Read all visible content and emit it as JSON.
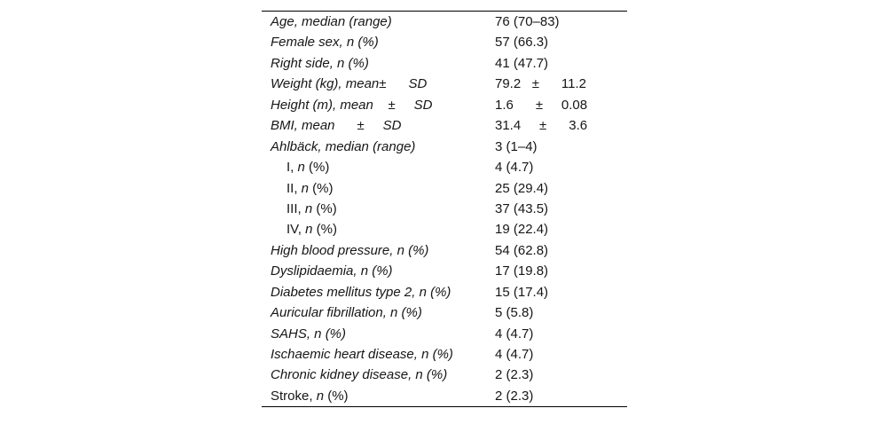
{
  "colors": {
    "background": "#ffffff",
    "text": "#161616",
    "rule": "#000000"
  },
  "table": {
    "rows": [
      {
        "indent": false,
        "label": [
          {
            "t": "Age, median (range)",
            "i": true
          }
        ],
        "value": "76 (70–83)"
      },
      {
        "indent": false,
        "label": [
          {
            "t": "Female sex, n (%)",
            "i": true
          }
        ],
        "value": "57 (66.3)"
      },
      {
        "indent": false,
        "label": [
          {
            "t": "Right side, n (%)",
            "i": true
          }
        ],
        "value": "41 (47.7)"
      },
      {
        "indent": false,
        "label": [
          {
            "t": "Weight (kg), mean±      SD",
            "i": true
          }
        ],
        "value": "79.2   ±      11.2"
      },
      {
        "indent": false,
        "label": [
          {
            "t": "Height (m), mean    ±     SD",
            "i": true
          }
        ],
        "value": "1.6      ±     0.08"
      },
      {
        "indent": false,
        "label": [
          {
            "t": "BMI, mean      ±     SD",
            "i": true
          }
        ],
        "value": "31.4     ±      3.6"
      },
      {
        "indent": false,
        "label": [
          {
            "t": "Ahlbäck, median (range)",
            "i": true
          }
        ],
        "value": "3 (1–4)"
      },
      {
        "indent": true,
        "label": [
          {
            "t": "I, ",
            "i": false
          },
          {
            "t": "n",
            "i": true
          },
          {
            "t": " (%)",
            "i": false
          }
        ],
        "value": "4 (4.7)"
      },
      {
        "indent": true,
        "label": [
          {
            "t": "II, ",
            "i": false
          },
          {
            "t": "n",
            "i": true
          },
          {
            "t": " (%)",
            "i": false
          }
        ],
        "value": "25 (29.4)"
      },
      {
        "indent": true,
        "label": [
          {
            "t": "III, ",
            "i": false
          },
          {
            "t": "n",
            "i": true
          },
          {
            "t": " (%)",
            "i": false
          }
        ],
        "value": "37 (43.5)"
      },
      {
        "indent": true,
        "label": [
          {
            "t": "IV, ",
            "i": false
          },
          {
            "t": "n",
            "i": true
          },
          {
            "t": " (%)",
            "i": false
          }
        ],
        "value": "19 (22.4)"
      },
      {
        "indent": false,
        "label": [
          {
            "t": "High blood pressure, n (%)",
            "i": true
          }
        ],
        "value": "54 (62.8)"
      },
      {
        "indent": false,
        "label": [
          {
            "t": "Dyslipidaemia, n (%)",
            "i": true
          }
        ],
        "value": "17 (19.8)"
      },
      {
        "indent": false,
        "label": [
          {
            "t": "Diabetes mellitus type 2, n (%)",
            "i": true
          }
        ],
        "value": "15 (17.4)"
      },
      {
        "indent": false,
        "label": [
          {
            "t": "Auricular fibrillation, n (%)",
            "i": true
          }
        ],
        "value": "5 (5.8)"
      },
      {
        "indent": false,
        "label": [
          {
            "t": "SAHS, n (%)",
            "i": true
          }
        ],
        "value": "4 (4.7)"
      },
      {
        "indent": false,
        "label": [
          {
            "t": "Ischaemic heart disease, n (%)",
            "i": true
          }
        ],
        "value": "4 (4.7)"
      },
      {
        "indent": false,
        "label": [
          {
            "t": "Chronic kidney disease, n (%)",
            "i": true
          }
        ],
        "value": "2 (2.3)"
      },
      {
        "indent": false,
        "label": [
          {
            "t": "Stroke, ",
            "i": false
          },
          {
            "t": "n",
            "i": true
          },
          {
            "t": " (%)",
            "i": false
          }
        ],
        "value": "2 (2.3)"
      }
    ]
  }
}
